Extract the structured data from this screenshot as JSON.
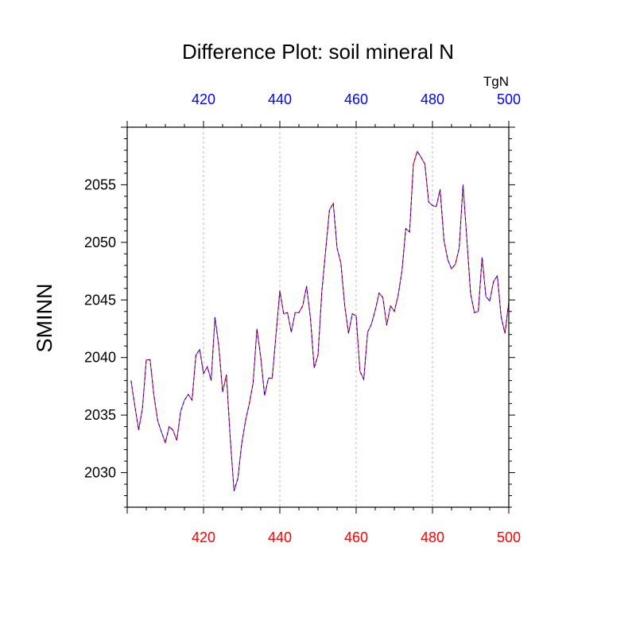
{
  "chart_data": {
    "type": "line",
    "title": "Difference Plot: soil mineral N",
    "ylabel": "SMINN",
    "units_label": "TgN",
    "xlim": [
      400,
      500
    ],
    "ylim": [
      2027,
      2060
    ],
    "x_ticks_bottom": [
      420,
      440,
      460,
      480,
      500
    ],
    "x_ticks_top": [
      420,
      440,
      460,
      480,
      500
    ],
    "y_ticks": [
      2030,
      2035,
      2040,
      2045,
      2050,
      2055
    ],
    "bottom_tick_color": "#ff0000",
    "top_tick_color": "#0000ff",
    "grid": "vertical dashed at major x ticks",
    "series": [
      {
        "color": "#ff0000",
        "dash": "solid",
        "x": [
          401,
          402,
          403,
          404,
          405,
          406,
          407,
          408,
          409,
          410,
          411,
          412,
          413,
          414,
          415,
          416,
          417,
          418,
          419,
          420,
          421,
          422,
          423,
          424,
          425,
          426,
          427,
          428,
          429,
          430,
          431,
          432,
          433,
          434,
          435,
          436,
          437,
          438,
          439,
          440,
          441,
          442,
          443,
          444,
          445,
          446,
          447,
          448,
          449,
          450,
          451,
          452,
          453,
          454,
          455,
          456,
          457,
          458,
          459,
          460,
          461,
          462,
          463,
          464,
          465,
          466,
          467,
          468,
          469,
          470,
          471,
          472,
          473,
          474,
          475,
          476,
          477,
          478,
          479,
          480,
          481,
          482,
          483,
          484,
          485,
          486,
          487,
          488,
          489,
          490,
          491,
          492,
          493,
          494,
          495,
          496,
          497,
          498,
          499,
          500
        ],
        "y": [
          2038.0,
          2035.8,
          2033.7,
          2035.6,
          2039.8,
          2039.8,
          2036.7,
          2034.5,
          2033.5,
          2032.6,
          2034.0,
          2033.7,
          2032.8,
          2035.3,
          2036.3,
          2036.8,
          2036.3,
          2040.2,
          2040.7,
          2038.6,
          2039.2,
          2038.0,
          2043.5,
          2041.0,
          2037.0,
          2038.5,
          2033.0,
          2028.4,
          2029.5,
          2032.5,
          2034.5,
          2036.0,
          2037.8,
          2042.5,
          2040.0,
          2036.7,
          2038.2,
          2038.2,
          2042.0,
          2045.8,
          2043.8,
          2043.9,
          2042.2,
          2043.9,
          2043.9,
          2044.5,
          2046.2,
          2043.5,
          2039.1,
          2040.2,
          2045.7,
          2049.3,
          2052.8,
          2053.4,
          2049.5,
          2048.2,
          2044.5,
          2042.1,
          2043.8,
          2043.6,
          2038.8,
          2038.1,
          2042.2,
          2042.9,
          2044.1,
          2045.6,
          2045.2,
          2042.8,
          2044.5,
          2044.0,
          2045.4,
          2047.5,
          2051.2,
          2050.9,
          2056.8,
          2057.9,
          2057.4,
          2056.8,
          2053.5,
          2053.2,
          2053.1,
          2054.6,
          2050.2,
          2048.5,
          2047.7,
          2048.1,
          2049.5,
          2055.0,
          2050.3,
          2045.5,
          2043.9,
          2044.0,
          2048.7,
          2045.3,
          2044.9,
          2046.6,
          2047.1,
          2043.5,
          2042.1,
          2044.8
        ]
      },
      {
        "color": "#0000ff",
        "dash": "dashed",
        "x": [
          401,
          402,
          403,
          404,
          405,
          406,
          407,
          408,
          409,
          410,
          411,
          412,
          413,
          414,
          415,
          416,
          417,
          418,
          419,
          420,
          421,
          422,
          423,
          424,
          425,
          426,
          427,
          428,
          429,
          430,
          431,
          432,
          433,
          434,
          435,
          436,
          437,
          438,
          439,
          440,
          441,
          442,
          443,
          444,
          445,
          446,
          447,
          448,
          449,
          450,
          451,
          452,
          453,
          454,
          455,
          456,
          457,
          458,
          459,
          460,
          461,
          462,
          463,
          464,
          465,
          466,
          467,
          468,
          469,
          470,
          471,
          472,
          473,
          474,
          475,
          476,
          477,
          478,
          479,
          480,
          481,
          482,
          483,
          484,
          485,
          486,
          487,
          488,
          489,
          490,
          491,
          492,
          493,
          494,
          495,
          496,
          497,
          498,
          499,
          500
        ],
        "y": [
          2038.0,
          2035.8,
          2033.7,
          2035.6,
          2039.8,
          2039.8,
          2036.7,
          2034.5,
          2033.5,
          2032.6,
          2034.0,
          2033.7,
          2032.8,
          2035.3,
          2036.3,
          2036.8,
          2036.3,
          2040.2,
          2040.7,
          2038.6,
          2039.2,
          2038.0,
          2043.5,
          2041.0,
          2037.0,
          2038.5,
          2033.0,
          2028.4,
          2029.5,
          2032.5,
          2034.5,
          2036.0,
          2037.8,
          2042.5,
          2040.0,
          2036.7,
          2038.2,
          2038.2,
          2042.0,
          2045.8,
          2043.8,
          2043.9,
          2042.2,
          2043.9,
          2043.9,
          2044.5,
          2046.2,
          2043.5,
          2039.1,
          2040.2,
          2045.7,
          2049.3,
          2052.8,
          2053.4,
          2049.5,
          2048.2,
          2044.5,
          2042.1,
          2043.8,
          2043.6,
          2038.8,
          2038.1,
          2042.2,
          2042.9,
          2044.1,
          2045.6,
          2045.2,
          2042.8,
          2044.5,
          2044.0,
          2045.4,
          2047.5,
          2051.2,
          2050.9,
          2056.8,
          2057.9,
          2057.4,
          2056.8,
          2053.5,
          2053.2,
          2053.1,
          2054.6,
          2050.2,
          2048.5,
          2047.7,
          2048.1,
          2049.5,
          2055.0,
          2050.3,
          2045.5,
          2043.9,
          2044.0,
          2048.7,
          2045.3,
          2044.9,
          2046.6,
          2047.1,
          2043.5,
          2042.1,
          2044.8
        ]
      }
    ]
  }
}
